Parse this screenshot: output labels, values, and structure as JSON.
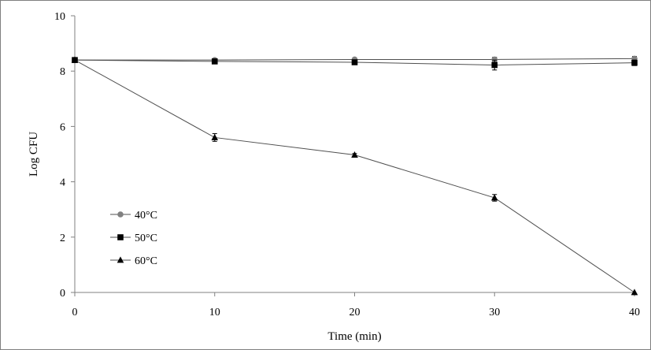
{
  "chart_data": {
    "type": "line",
    "title": "",
    "xlabel": "Time (min)",
    "ylabel": "Log CFU",
    "x": [
      0,
      10,
      20,
      30,
      40
    ],
    "xlim": [
      0,
      40
    ],
    "ylim": [
      0,
      10
    ],
    "x_ticks": [
      "0",
      "10",
      "20",
      "30",
      "40"
    ],
    "y_ticks": [
      "0",
      "2",
      "4",
      "6",
      "8",
      "10"
    ],
    "grid": false,
    "legend_position": "bottom-left",
    "series": [
      {
        "name": "40°C",
        "marker": "circle",
        "color": "#808080",
        "values": [
          8.4,
          8.4,
          8.42,
          8.42,
          8.45
        ],
        "errors": [
          0.03,
          0.05,
          0.03,
          0.08,
          0.08
        ]
      },
      {
        "name": "50°C",
        "marker": "square",
        "color": "#000000",
        "values": [
          8.4,
          8.35,
          8.32,
          8.22,
          8.3
        ],
        "errors": [
          0.03,
          0.07,
          0.04,
          0.18,
          0.1
        ]
      },
      {
        "name": "60°C",
        "marker": "triangle",
        "color": "#000000",
        "values": [
          8.4,
          5.6,
          4.97,
          3.42,
          0.0
        ],
        "errors": [
          0.03,
          0.14,
          0.05,
          0.12,
          0.0
        ]
      }
    ]
  }
}
